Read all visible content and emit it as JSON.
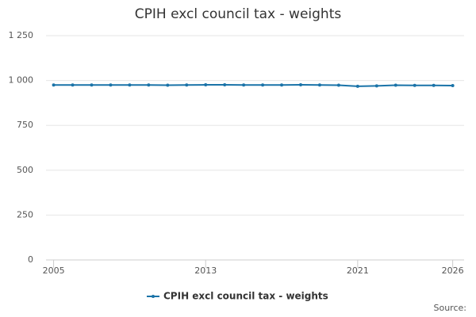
{
  "chart_data": {
    "type": "line",
    "title": "CPIH excl council tax - weights",
    "x": [
      2005,
      2006,
      2007,
      2008,
      2009,
      2010,
      2011,
      2012,
      2013,
      2014,
      2015,
      2016,
      2017,
      2018,
      2019,
      2020,
      2021,
      2022,
      2023,
      2024,
      2025,
      2026
    ],
    "series": [
      {
        "name": "CPIH excl council tax - weights",
        "color": "#1a73a8",
        "values": [
          975,
          975,
          975,
          975,
          975,
          975,
          974,
          975,
          976,
          976,
          975,
          975,
          975,
          976,
          975,
          974,
          968,
          970,
          974,
          973,
          973,
          972
        ]
      }
    ],
    "xlim": [
      2004.6,
      2026.6
    ],
    "xticks": [
      2005,
      2013,
      2021,
      2026
    ],
    "ylim": [
      0,
      1250
    ],
    "yticks": [
      0,
      250,
      500,
      750,
      {
        "value": 1000,
        "label": "1 000"
      },
      {
        "value": 1250,
        "label": "1 250"
      }
    ],
    "grid": true,
    "legend": "bottom",
    "source": "Source:"
  }
}
